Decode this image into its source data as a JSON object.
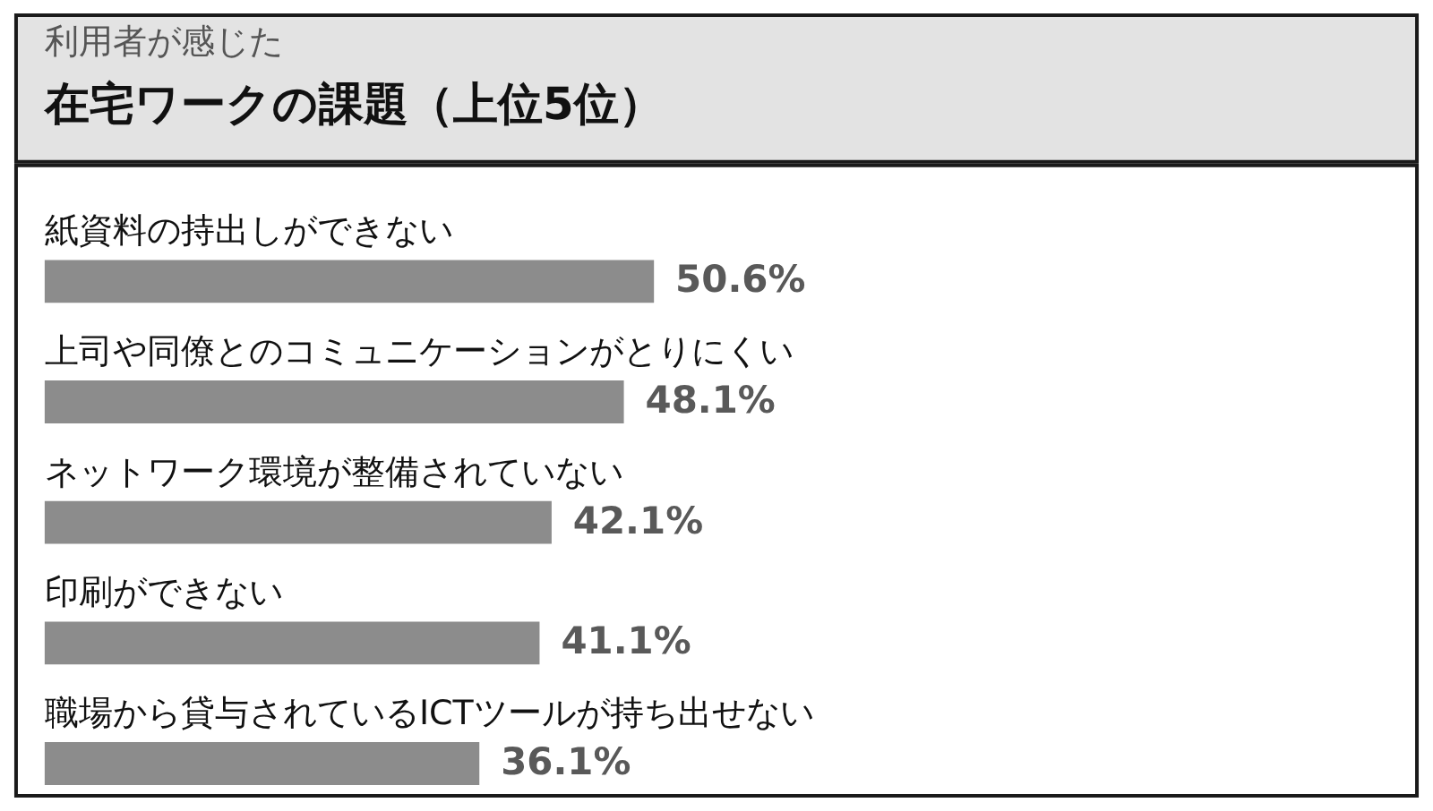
{
  "chart_data": {
    "type": "bar",
    "orientation": "horizontal",
    "subtitle": "利用者が感じた",
    "title": "在宅ワークの課題（上位5位）",
    "categories": [
      "紙資料の持出しができない",
      "上司や同僚とのコミュニケーションがとりにくい",
      "ネットワーク環境が整備されていない",
      "印刷ができない",
      "職場から貸与されているICTツールが持ち出せない"
    ],
    "values": [
      50.6,
      48.1,
      42.1,
      41.1,
      36.1
    ],
    "value_labels": [
      "50.6%",
      "48.1%",
      "42.1%",
      "41.1%",
      "36.1%"
    ],
    "color": "#8c8c8c"
  }
}
